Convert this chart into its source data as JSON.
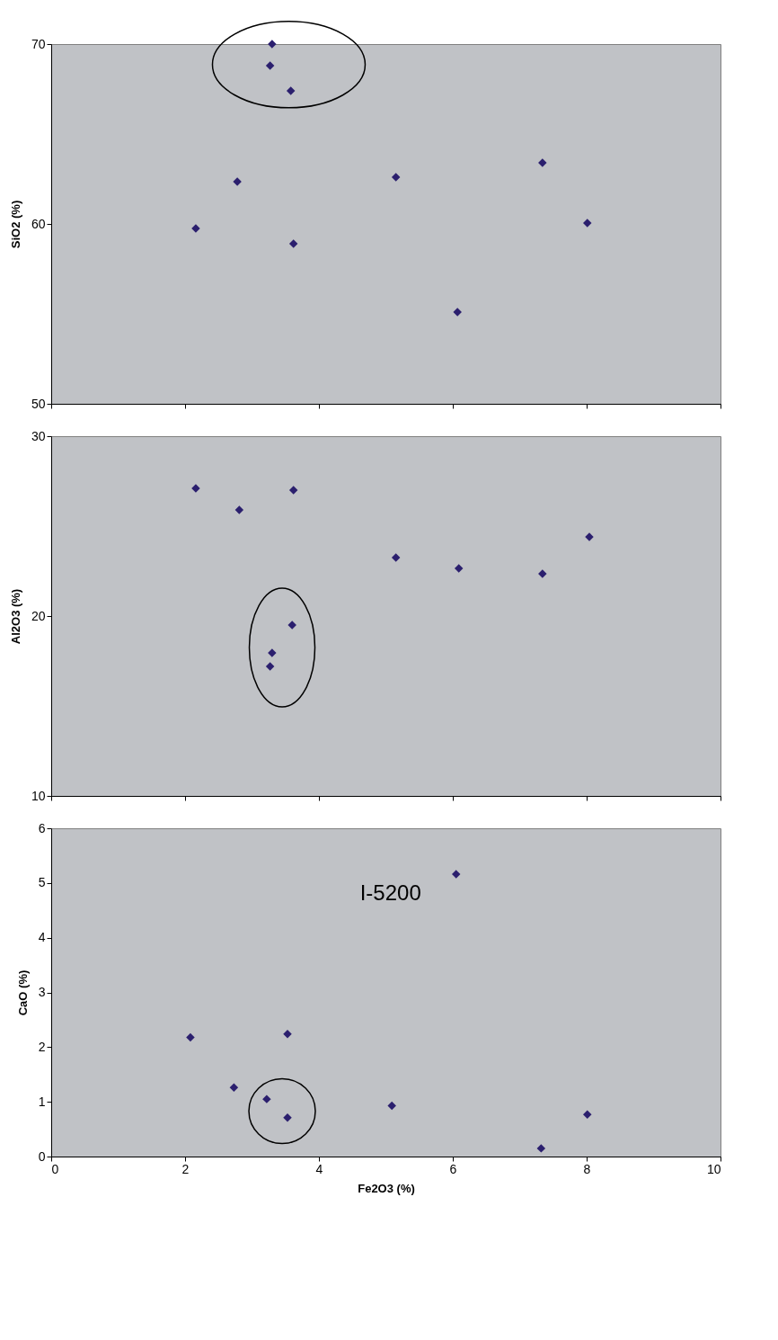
{
  "chart_data": [
    {
      "type": "scatter",
      "ylabel": "SiO2 (%)",
      "xlim": [
        0,
        10
      ],
      "xticks": [
        0,
        2,
        4,
        6,
        8,
        10
      ],
      "ylim": [
        50,
        70
      ],
      "yticks": [
        50,
        60,
        70
      ],
      "tick_labels": "y",
      "grid": false,
      "marker": "diamond",
      "series": [
        {
          "color": "#2b1f6e",
          "x": [
            3.3,
            3.27,
            3.58,
            2.78,
            5.15,
            7.34,
            2.16,
            3.62,
            8.01,
            6.07
          ],
          "values": [
            70.0,
            68.8,
            67.4,
            62.35,
            62.6,
            63.4,
            59.75,
            58.9,
            60.05,
            55.1
          ]
        }
      ]
    },
    {
      "type": "scatter",
      "ylabel": "Al2O3 (%)",
      "xlim": [
        0,
        10
      ],
      "xticks": [
        0,
        2,
        4,
        6,
        8,
        10
      ],
      "ylim": [
        10,
        30
      ],
      "yticks": [
        10,
        20,
        30
      ],
      "tick_labels": "y",
      "grid": false,
      "marker": "diamond",
      "series": [
        {
          "color": "#2b1f6e",
          "x": [
            2.16,
            2.81,
            3.62,
            5.15,
            6.09,
            7.34,
            8.04,
            3.6,
            3.3,
            3.27
          ],
          "values": [
            27.1,
            25.9,
            27.0,
            23.25,
            22.65,
            22.35,
            24.4,
            19.5,
            17.95,
            17.2
          ]
        }
      ]
    },
    {
      "type": "scatter",
      "xlabel": "Fe2O3 (%)",
      "ylabel": "CaO (%)",
      "xlim": [
        0,
        10
      ],
      "xticks": [
        0,
        2,
        4,
        6,
        8,
        10
      ],
      "ylim": [
        0,
        6
      ],
      "yticks": [
        0,
        1,
        2,
        3,
        4,
        5,
        6
      ],
      "grid": false,
      "marker": "diamond",
      "annotations": [
        {
          "text": "I-5200",
          "x": 6.05,
          "y": 5.16
        }
      ],
      "series": [
        {
          "color": "#2b1f6e",
          "x": [
            2.08,
            2.73,
            3.22,
            3.53,
            3.53,
            5.09,
            6.05,
            7.32,
            8.01
          ],
          "values": [
            2.18,
            1.26,
            1.05,
            2.24,
            0.71,
            0.93,
            5.16,
            0.15,
            0.77
          ]
        }
      ]
    }
  ]
}
